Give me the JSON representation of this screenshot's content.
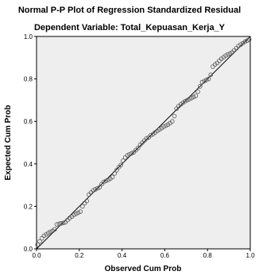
{
  "chart_data": {
    "type": "scatter",
    "title": "Normal P-P Plot of Regression Standardized Residual",
    "subtitle": "Dependent Variable: Total_Kepuasan_Kerja_Y",
    "xlabel": "Observed Cum Prob",
    "ylabel": "Expected Cum Prob",
    "xlim": [
      0,
      1
    ],
    "ylim": [
      0,
      1
    ],
    "x_ticks": [
      "0.0",
      "0.2",
      "0.4",
      "0.6",
      "0.8",
      "1.0"
    ],
    "y_ticks": [
      "0.0",
      "0.2",
      "0.4",
      "0.6",
      "0.8",
      "1.0"
    ],
    "grid": false,
    "reference_line": [
      [
        0,
        0
      ],
      [
        1,
        1
      ]
    ],
    "colors": {
      "plot_background": "#eeeeee",
      "points": "#555555",
      "line": "#000000"
    },
    "points": {
      "x": [
        0.005,
        0.015,
        0.025,
        0.035,
        0.045,
        0.055,
        0.065,
        0.075,
        0.085,
        0.095,
        0.105,
        0.115,
        0.125,
        0.135,
        0.145,
        0.155,
        0.165,
        0.175,
        0.185,
        0.195,
        0.205,
        0.215,
        0.225,
        0.235,
        0.245,
        0.255,
        0.265,
        0.275,
        0.285,
        0.295,
        0.305,
        0.315,
        0.325,
        0.335,
        0.345,
        0.355,
        0.365,
        0.375,
        0.385,
        0.395,
        0.405,
        0.415,
        0.425,
        0.435,
        0.445,
        0.455,
        0.465,
        0.475,
        0.485,
        0.495,
        0.505,
        0.515,
        0.525,
        0.535,
        0.545,
        0.555,
        0.565,
        0.575,
        0.585,
        0.595,
        0.605,
        0.615,
        0.625,
        0.635,
        0.645,
        0.655,
        0.665,
        0.675,
        0.685,
        0.695,
        0.705,
        0.715,
        0.725,
        0.735,
        0.745,
        0.755,
        0.765,
        0.775,
        0.785,
        0.795,
        0.805,
        0.815,
        0.825,
        0.835,
        0.845,
        0.855,
        0.865,
        0.875,
        0.885,
        0.895,
        0.905,
        0.915,
        0.925,
        0.935,
        0.945,
        0.955,
        0.965,
        0.975,
        0.985,
        0.995
      ],
      "y": [
        0.02,
        0.035,
        0.05,
        0.062,
        0.068,
        0.075,
        0.08,
        0.085,
        0.092,
        0.115,
        0.118,
        0.12,
        0.122,
        0.125,
        0.135,
        0.145,
        0.152,
        0.16,
        0.165,
        0.17,
        0.175,
        0.2,
        0.215,
        0.225,
        0.255,
        0.265,
        0.275,
        0.28,
        0.285,
        0.29,
        0.305,
        0.315,
        0.32,
        0.325,
        0.33,
        0.338,
        0.355,
        0.37,
        0.385,
        0.395,
        0.415,
        0.43,
        0.44,
        0.445,
        0.45,
        0.455,
        0.465,
        0.475,
        0.49,
        0.5,
        0.51,
        0.52,
        0.525,
        0.535,
        0.54,
        0.548,
        0.555,
        0.562,
        0.568,
        0.575,
        0.58,
        0.585,
        0.592,
        0.6,
        0.625,
        0.66,
        0.672,
        0.68,
        0.688,
        0.695,
        0.7,
        0.705,
        0.71,
        0.715,
        0.72,
        0.74,
        0.765,
        0.785,
        0.79,
        0.795,
        0.8,
        0.82,
        0.858,
        0.868,
        0.875,
        0.885,
        0.895,
        0.902,
        0.91,
        0.915,
        0.92,
        0.925,
        0.935,
        0.945,
        0.955,
        0.962,
        0.968,
        0.975,
        0.98,
        0.985
      ]
    }
  }
}
